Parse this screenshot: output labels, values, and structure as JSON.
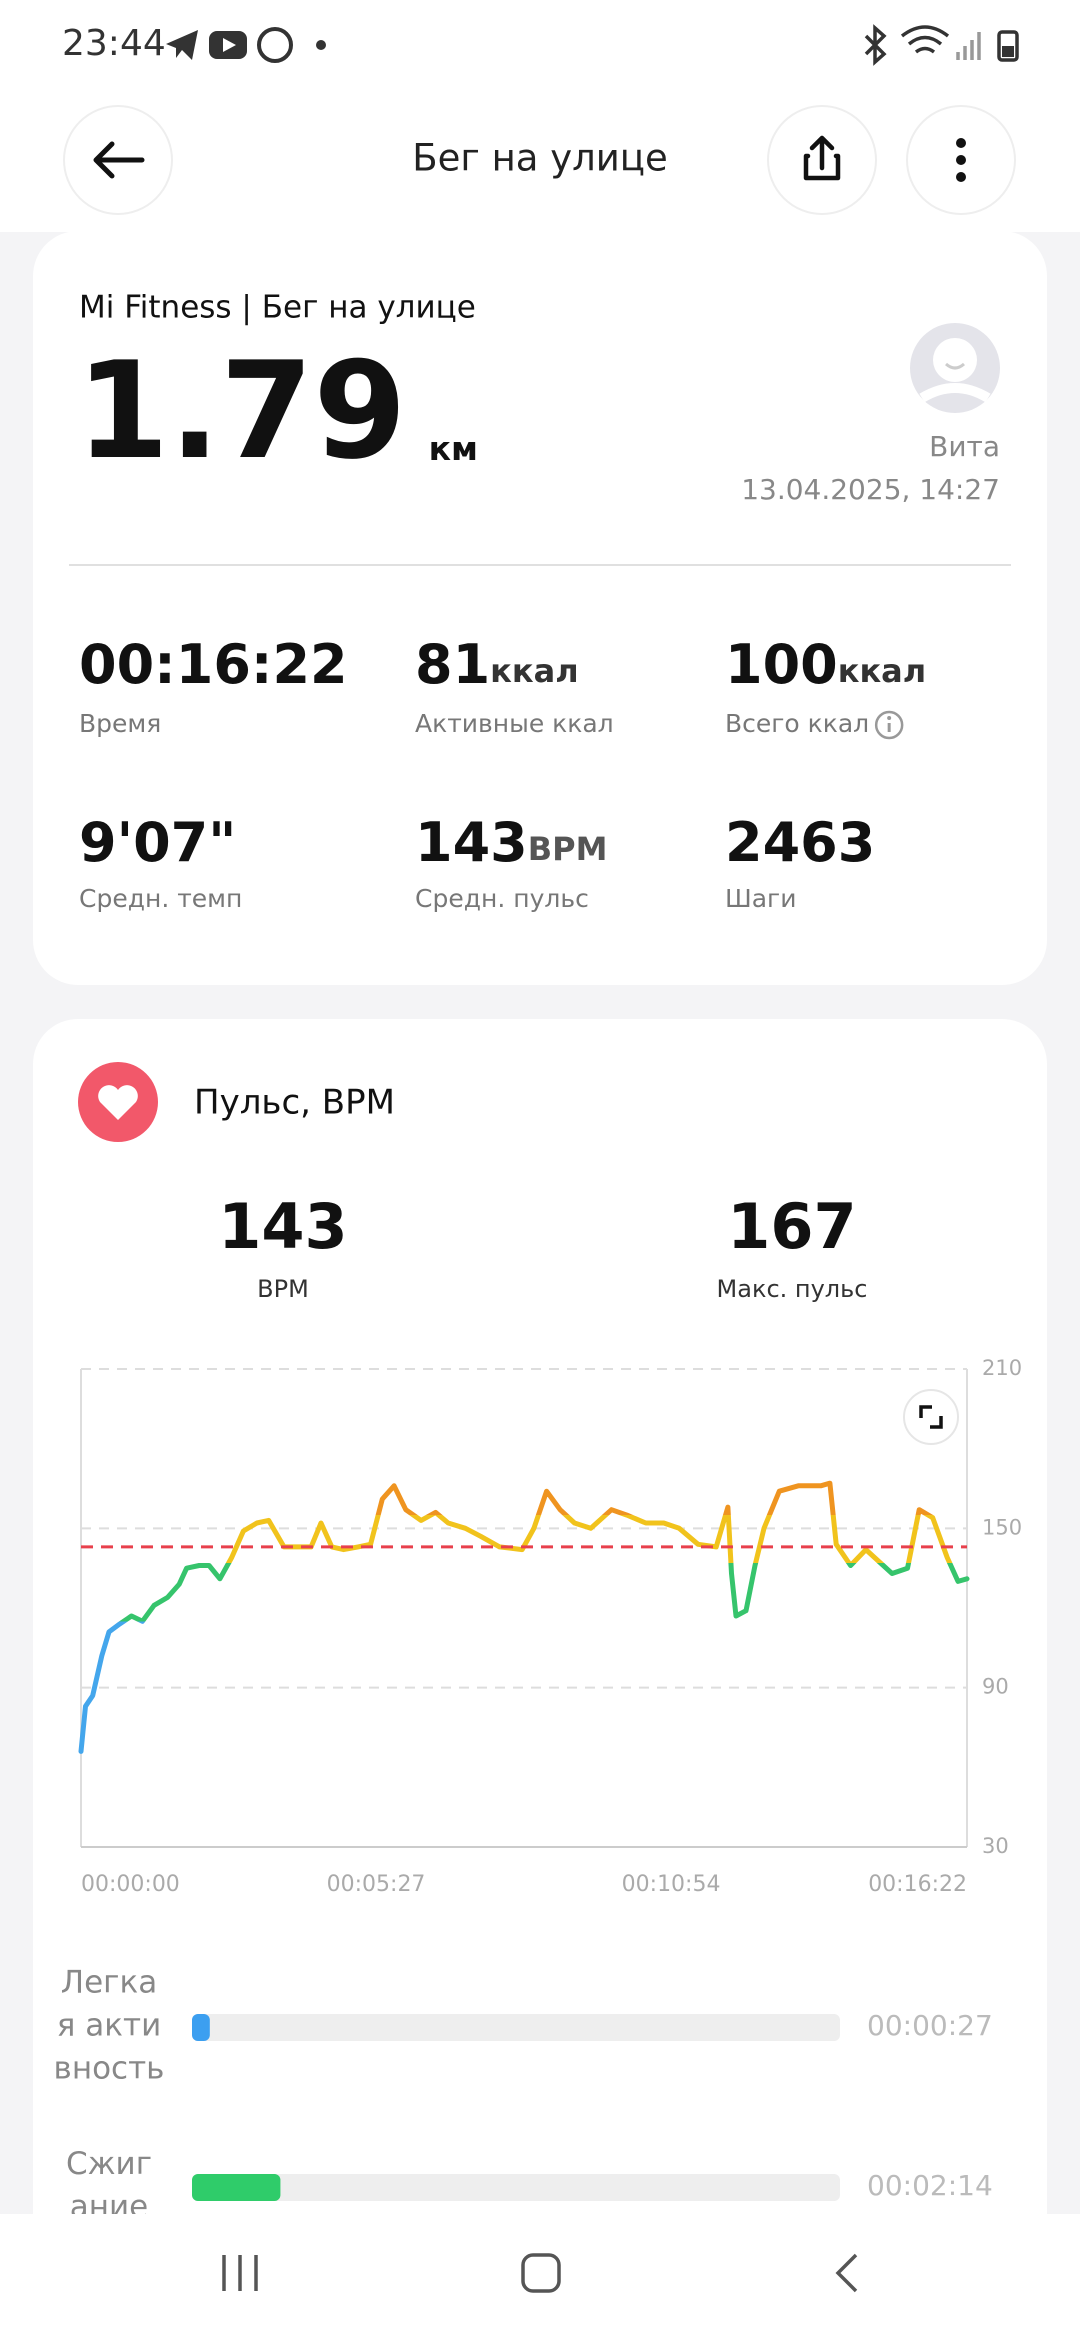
{
  "status_bar": {
    "time": "23:44"
  },
  "header": {
    "title": "Бег на улице"
  },
  "summary": {
    "source": "Mi Fitness | Бег на улице",
    "distance": {
      "value": "1.79",
      "unit": "км"
    },
    "user": "Вита",
    "datetime": "13.04.2025, 14:27",
    "stats": [
      {
        "value": "00:16:22",
        "label": "Время"
      },
      {
        "value": "81",
        "unit": "ккал",
        "label": "Активные ккал"
      },
      {
        "value": "100",
        "unit": "ккал",
        "label": "Всего ккал"
      },
      {
        "value": "9'07\"",
        "label": "Средн. темп"
      },
      {
        "value": "143",
        "unit": "BPM",
        "label": "Средн. пульс"
      },
      {
        "value": "2463",
        "label": "Шаги"
      }
    ]
  },
  "heart_rate": {
    "title": "Пульс, BPM",
    "avg": {
      "value": "143",
      "label": "BPM"
    },
    "max": {
      "value": "167",
      "label": "Макс. пульс"
    }
  },
  "chart_data": {
    "type": "line",
    "x": [
      0,
      5,
      13,
      23,
      31,
      43,
      56,
      68,
      81,
      96,
      109,
      117,
      131,
      142,
      154,
      167,
      180,
      195,
      208,
      225,
      241,
      255,
      266,
      278,
      291,
      307,
      321,
      334,
      347,
      360,
      377,
      393,
      407,
      426,
      443,
      464,
      489,
      502,
      516,
      531,
      547,
      565,
      588,
      605,
      626,
      646,
      663,
      684,
      704,
      717,
      721,
      726,
      737,
      747,
      757,
      774,
      795,
      820,
      830,
      837,
      853,
      870,
      886,
      899,
      916,
      929,
      944,
      960,
      972,
      982
    ],
    "values": [
      66,
      83,
      87,
      102,
      111,
      114,
      117,
      115,
      121,
      124,
      129,
      135,
      136,
      136,
      131,
      139,
      149,
      152,
      153,
      143,
      143,
      143,
      152,
      143,
      142,
      143,
      144,
      161,
      166,
      157,
      153,
      156,
      152,
      150,
      147,
      143,
      142,
      150,
      164,
      157,
      152,
      150,
      157,
      155,
      152,
      152,
      150,
      144,
      143,
      158,
      133,
      117,
      119,
      136,
      150,
      164,
      166,
      166,
      167,
      144,
      136,
      142,
      137,
      133,
      135,
      157,
      154,
      139,
      130,
      131
    ],
    "xlim": [
      0,
      982
    ],
    "xticks": [
      {
        "value": 0,
        "label": "00:00:00"
      },
      {
        "value": 327,
        "label": "00:05:27"
      },
      {
        "value": 654,
        "label": "00:10:54"
      },
      {
        "value": 982,
        "label": "00:16:22"
      }
    ],
    "ylim": [
      30,
      210
    ],
    "yticks": [
      30,
      90,
      150,
      210
    ],
    "grid": true,
    "band_limits": [
      115,
      137,
      155
    ],
    "band_colors": [
      "#44a6ec",
      "#36c46c",
      "#f1c31c",
      "#ef9420"
    ],
    "reference_color": "#e8404c"
  },
  "zones": [
    {
      "label_lines": [
        "Легка",
        "я акти",
        "вность"
      ],
      "duration": "00:00:27",
      "color": "#3c9ff0"
    },
    {
      "label_lines": [
        "Сжиг",
        "ание"
      ],
      "duration": "00:02:14",
      "color": "#2fcc6a"
    }
  ]
}
